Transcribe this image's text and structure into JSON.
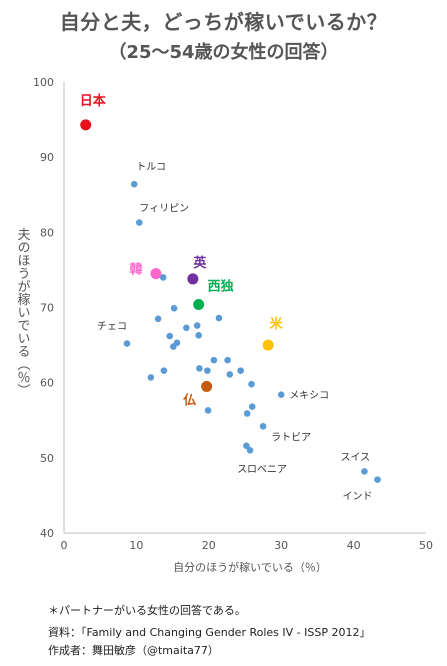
{
  "title_line1": "自分と夫，どっちが稼いでいるか？",
  "title_line2": "（25～54歳の女性の回答）",
  "notes": {
    "footnote": "＊パートナーがいる女性の回答である。",
    "source": "資料：「Family and Changing Gender Roles IV - ISSP 2012」",
    "author": "作成者：舞田敏彦（@tmaita77）"
  },
  "colors": {
    "default_point": "#5b9bd5",
    "japan": "#e8101f",
    "uk": "#7030a0",
    "korea": "#ff66cc",
    "germany": "#00b050",
    "usa": "#ffc000",
    "france": "#c55a11"
  },
  "chart_data": {
    "type": "scatter",
    "xlabel": "自分のほうが稼いでいる（％）",
    "ylabel": "夫のほうが稼いでいる（％）",
    "xlim": [
      0,
      50
    ],
    "ylim": [
      40,
      100
    ],
    "xticks": [
      0,
      10,
      20,
      30,
      40,
      50
    ],
    "yticks": [
      40,
      50,
      60,
      70,
      80,
      90,
      100
    ],
    "grid": false,
    "points": [
      {
        "label": "日本",
        "x": 3.0,
        "y": 94.3,
        "highlight": "japan"
      },
      {
        "label": "英",
        "x": 17.8,
        "y": 73.8,
        "highlight": "uk"
      },
      {
        "label": "韓",
        "x": 12.7,
        "y": 74.5,
        "highlight": "korea"
      },
      {
        "label": "西独",
        "x": 18.6,
        "y": 70.4,
        "highlight": "germany"
      },
      {
        "label": "米",
        "x": 28.2,
        "y": 65.0,
        "highlight": "usa"
      },
      {
        "label": "仏",
        "x": 19.7,
        "y": 59.5,
        "highlight": "france"
      },
      {
        "label": "トルコ",
        "x": 9.7,
        "y": 86.4
      },
      {
        "label": "フィリピン",
        "x": 10.4,
        "y": 81.3
      },
      {
        "label": "チェコ",
        "x": 8.7,
        "y": 65.2
      },
      {
        "label": "メキシコ",
        "x": 30.0,
        "y": 58.4
      },
      {
        "label": "ラトビア",
        "x": 27.5,
        "y": 54.2
      },
      {
        "label": "スロベニア",
        "x": 25.7,
        "y": 51.0
      },
      {
        "label": "スイス",
        "x": 41.5,
        "y": 48.2
      },
      {
        "label": "インド",
        "x": 43.3,
        "y": 47.1
      },
      {
        "label": "",
        "x": 13.7,
        "y": 74.0
      },
      {
        "label": "",
        "x": 15.2,
        "y": 69.9
      },
      {
        "label": "",
        "x": 13.0,
        "y": 68.5
      },
      {
        "label": "",
        "x": 21.4,
        "y": 68.6
      },
      {
        "label": "",
        "x": 16.9,
        "y": 67.3
      },
      {
        "label": "",
        "x": 18.4,
        "y": 67.6
      },
      {
        "label": "",
        "x": 14.6,
        "y": 66.2
      },
      {
        "label": "",
        "x": 18.6,
        "y": 66.3
      },
      {
        "label": "",
        "x": 15.6,
        "y": 65.3
      },
      {
        "label": "",
        "x": 15.1,
        "y": 64.8
      },
      {
        "label": "",
        "x": 20.7,
        "y": 63.0
      },
      {
        "label": "",
        "x": 22.6,
        "y": 63.0
      },
      {
        "label": "",
        "x": 13.8,
        "y": 61.6
      },
      {
        "label": "",
        "x": 18.7,
        "y": 61.9
      },
      {
        "label": "",
        "x": 19.8,
        "y": 61.6
      },
      {
        "label": "",
        "x": 22.9,
        "y": 61.1
      },
      {
        "label": "",
        "x": 24.4,
        "y": 61.6
      },
      {
        "label": "",
        "x": 12.0,
        "y": 60.7
      },
      {
        "label": "",
        "x": 25.9,
        "y": 59.8
      },
      {
        "label": "",
        "x": 26.0,
        "y": 56.8
      },
      {
        "label": "",
        "x": 19.9,
        "y": 56.3
      },
      {
        "label": "",
        "x": 25.3,
        "y": 55.9
      },
      {
        "label": "",
        "x": 25.2,
        "y": 51.6
      }
    ]
  }
}
